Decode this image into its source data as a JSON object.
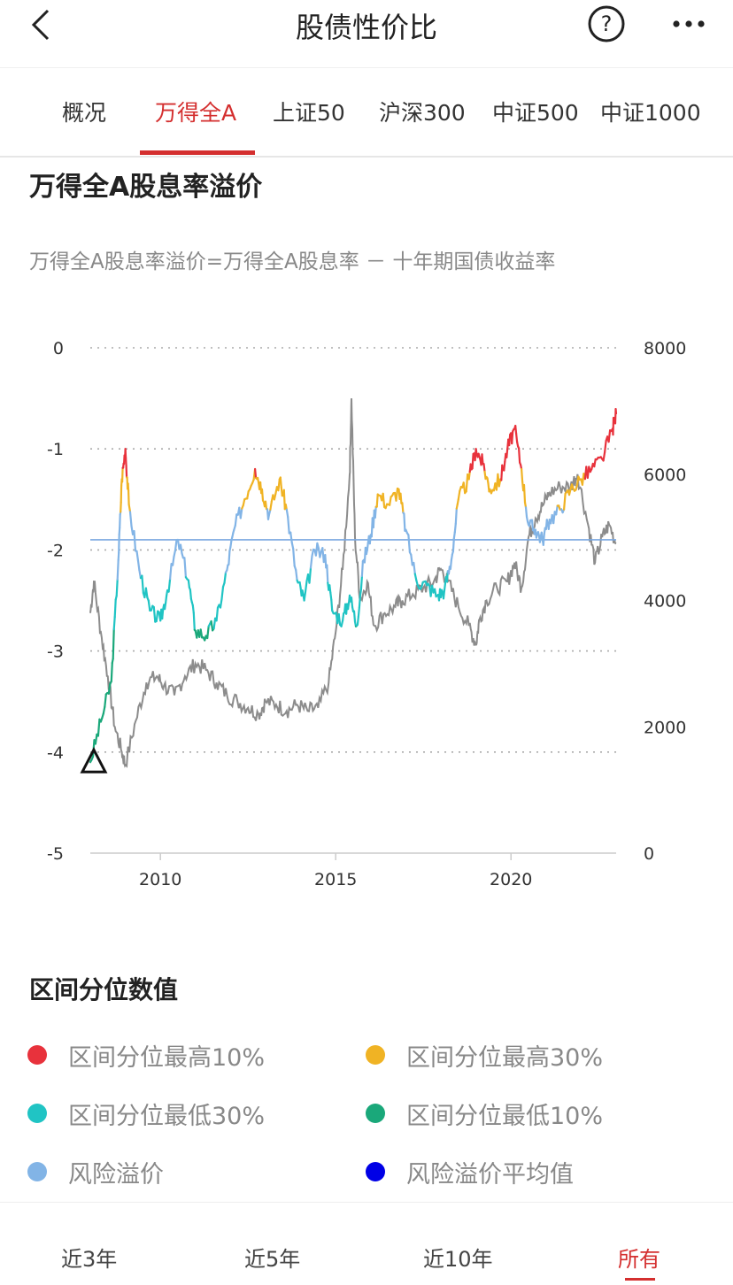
{
  "header": {
    "title": "股债性价比"
  },
  "tabs": [
    {
      "label": "概况"
    },
    {
      "label": "万得全A",
      "active": true
    },
    {
      "label": "上证50"
    },
    {
      "label": "沪深300"
    },
    {
      "label": "中证500"
    },
    {
      "label": "中证1000"
    }
  ],
  "section": {
    "title": "万得全A股息率溢价",
    "subtitle": "万得全A股息率溢价=万得全A股息率 － 十年期国债收益率"
  },
  "chart_data": {
    "type": "line",
    "x_ticks": [
      "2010",
      "2015",
      "2020"
    ],
    "y_left": {
      "ticks": [
        "0",
        "-1",
        "-2",
        "-3",
        "-4",
        "-5"
      ],
      "range": [
        -5,
        0
      ]
    },
    "y_right": {
      "ticks": [
        "8000",
        "6000",
        "4000",
        "2000",
        "0"
      ],
      "range": [
        0,
        8000
      ]
    },
    "average": -1.9,
    "series": [
      {
        "key": "premium",
        "color": "#82b4e6",
        "points": [
          [
            2008.0,
            -4.1
          ],
          [
            2008.3,
            -3.7
          ],
          [
            2008.6,
            -3.3
          ],
          [
            2008.8,
            -2.1
          ],
          [
            2008.9,
            -1.3
          ],
          [
            2009.0,
            -1.0
          ],
          [
            2009.1,
            -1.55
          ],
          [
            2009.4,
            -2.2
          ],
          [
            2009.7,
            -2.6
          ],
          [
            2010.0,
            -2.7
          ],
          [
            2010.2,
            -2.4
          ],
          [
            2010.5,
            -1.9
          ],
          [
            2010.8,
            -2.3
          ],
          [
            2011.0,
            -2.8
          ],
          [
            2011.3,
            -2.85
          ],
          [
            2011.6,
            -2.7
          ],
          [
            2011.9,
            -2.2
          ],
          [
            2012.1,
            -1.8
          ],
          [
            2012.4,
            -1.5
          ],
          [
            2012.7,
            -1.2
          ],
          [
            2012.9,
            -1.4
          ],
          [
            2013.1,
            -1.65
          ],
          [
            2013.4,
            -1.3
          ],
          [
            2013.6,
            -1.6
          ],
          [
            2013.9,
            -2.3
          ],
          [
            2014.1,
            -2.5
          ],
          [
            2014.4,
            -2.0
          ],
          [
            2014.7,
            -2.05
          ],
          [
            2014.9,
            -2.6
          ],
          [
            2015.2,
            -2.7
          ],
          [
            2015.4,
            -2.45
          ],
          [
            2015.6,
            -2.75
          ],
          [
            2015.8,
            -2.1
          ],
          [
            2016.0,
            -1.85
          ],
          [
            2016.2,
            -1.45
          ],
          [
            2016.5,
            -1.55
          ],
          [
            2016.8,
            -1.4
          ],
          [
            2017.0,
            -1.8
          ],
          [
            2017.3,
            -2.3
          ],
          [
            2017.6,
            -2.35
          ],
          [
            2017.9,
            -2.45
          ],
          [
            2018.1,
            -2.4
          ],
          [
            2018.3,
            -2.1
          ],
          [
            2018.5,
            -1.5
          ],
          [
            2018.8,
            -1.3
          ],
          [
            2019.0,
            -1.0
          ],
          [
            2019.2,
            -1.15
          ],
          [
            2019.4,
            -1.4
          ],
          [
            2019.7,
            -1.3
          ],
          [
            2019.9,
            -1.0
          ],
          [
            2020.1,
            -0.8
          ],
          [
            2020.3,
            -1.2
          ],
          [
            2020.5,
            -1.75
          ],
          [
            2020.7,
            -1.8
          ],
          [
            2020.9,
            -1.9
          ],
          [
            2021.1,
            -1.7
          ],
          [
            2021.4,
            -1.6
          ],
          [
            2021.7,
            -1.4
          ],
          [
            2022.0,
            -1.3
          ],
          [
            2022.3,
            -1.2
          ],
          [
            2022.6,
            -1.1
          ],
          [
            2022.9,
            -0.8
          ],
          [
            2023.0,
            -0.65
          ]
        ]
      },
      {
        "key": "index",
        "color": "#8c8c8c",
        "points": [
          [
            2008.0,
            3800
          ],
          [
            2008.1,
            4300
          ],
          [
            2008.3,
            3500
          ],
          [
            2008.5,
            2800
          ],
          [
            2008.7,
            2000
          ],
          [
            2008.9,
            1600
          ],
          [
            2009.0,
            1400
          ],
          [
            2009.3,
            2100
          ],
          [
            2009.6,
            2700
          ],
          [
            2009.9,
            2800
          ],
          [
            2010.1,
            2650
          ],
          [
            2010.4,
            2500
          ],
          [
            2010.7,
            2800
          ],
          [
            2011.0,
            3000
          ],
          [
            2011.3,
            2900
          ],
          [
            2011.6,
            2700
          ],
          [
            2011.9,
            2500
          ],
          [
            2012.2,
            2400
          ],
          [
            2012.5,
            2300
          ],
          [
            2012.8,
            2200
          ],
          [
            2013.0,
            2400
          ],
          [
            2013.3,
            2350
          ],
          [
            2013.6,
            2250
          ],
          [
            2013.9,
            2350
          ],
          [
            2014.2,
            2250
          ],
          [
            2014.5,
            2300
          ],
          [
            2014.8,
            2700
          ],
          [
            2015.0,
            3500
          ],
          [
            2015.2,
            4500
          ],
          [
            2015.4,
            6000
          ],
          [
            2015.45,
            7200
          ],
          [
            2015.55,
            5000
          ],
          [
            2015.7,
            4000
          ],
          [
            2015.9,
            4300
          ],
          [
            2016.1,
            3600
          ],
          [
            2016.4,
            3800
          ],
          [
            2016.7,
            3900
          ],
          [
            2016.9,
            4000
          ],
          [
            2017.2,
            4100
          ],
          [
            2017.5,
            4200
          ],
          [
            2017.8,
            4300
          ],
          [
            2018.0,
            4500
          ],
          [
            2018.2,
            4300
          ],
          [
            2018.5,
            3900
          ],
          [
            2018.8,
            3600
          ],
          [
            2019.0,
            3300
          ],
          [
            2019.1,
            3700
          ],
          [
            2019.3,
            4000
          ],
          [
            2019.6,
            4200
          ],
          [
            2019.9,
            4300
          ],
          [
            2020.1,
            4600
          ],
          [
            2020.3,
            4200
          ],
          [
            2020.5,
            5000
          ],
          [
            2020.7,
            5300
          ],
          [
            2020.9,
            5500
          ],
          [
            2021.1,
            5700
          ],
          [
            2021.4,
            5800
          ],
          [
            2021.7,
            5800
          ],
          [
            2021.9,
            6000
          ],
          [
            2022.2,
            5200
          ],
          [
            2022.4,
            4600
          ],
          [
            2022.6,
            5000
          ],
          [
            2022.8,
            5200
          ],
          [
            2023.0,
            4900
          ]
        ]
      }
    ],
    "bands": [
      {
        "key": "top10",
        "color": "#e8323c",
        "above": -1.25
      },
      {
        "key": "top30",
        "color": "#f0b324",
        "above": -1.6
      },
      {
        "key": "low30",
        "color": "#20c4c4",
        "below": -2.25
      },
      {
        "key": "low10",
        "color": "#1aa87a",
        "below": -2.75
      }
    ],
    "marker": {
      "x": 2008.1,
      "y": -4.1
    }
  },
  "legend": {
    "title": "区间分位数值",
    "items": [
      {
        "label": "区间分位最高10%",
        "color": "#e8323c"
      },
      {
        "label": "区间分位最高30%",
        "color": "#f0b324"
      },
      {
        "label": "区间分位最低30%",
        "color": "#20c4c4"
      },
      {
        "label": "区间分位最低10%",
        "color": "#1aa87a"
      },
      {
        "label": "风险溢价",
        "color": "#82b4e6"
      },
      {
        "label": "风险溢价平均值",
        "color": "#0000e6"
      }
    ]
  },
  "periods": [
    {
      "label": "近3年"
    },
    {
      "label": "近5年"
    },
    {
      "label": "近10年"
    },
    {
      "label": "所有",
      "active": true
    }
  ]
}
